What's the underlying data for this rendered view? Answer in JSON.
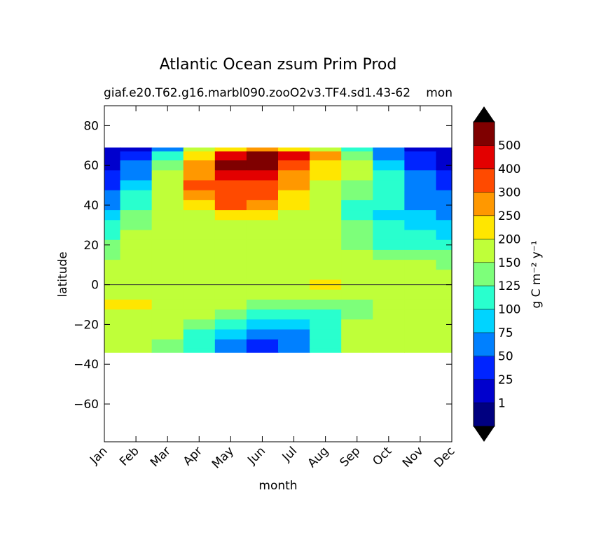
{
  "chart_data": {
    "type": "contourf",
    "title": "Atlantic Ocean zsum Prim Prod",
    "subtitle_left": "giaf.e20.T62.g16.marbl090.zooO2v3.TF4.sd1.43-62",
    "subtitle_right": "mon",
    "xlabel": "month",
    "ylabel": "latitude",
    "colorbar_label": "g C m⁻² y⁻¹",
    "categories": [
      "Jan",
      "Feb",
      "Mar",
      "Apr",
      "May",
      "Jun",
      "Jul",
      "Aug",
      "Sep",
      "Oct",
      "Nov",
      "Dec"
    ],
    "xlim": [
      0,
      11
    ],
    "ylim": [
      -79,
      90
    ],
    "yticks": [
      {
        "value": -60,
        "label": "−60"
      },
      {
        "value": -40,
        "label": "−40"
      },
      {
        "value": -20,
        "label": "−20"
      },
      0,
      20,
      40,
      60,
      80
    ],
    "lat": [
      69,
      65,
      60,
      55,
      50,
      45,
      40,
      35,
      30,
      25,
      20,
      15,
      10,
      5,
      0,
      -5,
      -10,
      -15,
      -20,
      -25,
      -30,
      -34
    ],
    "z": [
      [
        10,
        20,
        60,
        150,
        200,
        250,
        200,
        180,
        120,
        60,
        20,
        10
      ],
      [
        10,
        30,
        110,
        210,
        450,
        550,
        420,
        250,
        140,
        70,
        30,
        20
      ],
      [
        10,
        50,
        140,
        260,
        520,
        530,
        350,
        220,
        150,
        80,
        40,
        20
      ],
      [
        30,
        70,
        160,
        280,
        420,
        420,
        280,
        200,
        150,
        100,
        50,
        30
      ],
      [
        40,
        90,
        170,
        300,
        350,
        340,
        260,
        180,
        140,
        110,
        60,
        40
      ],
      [
        60,
        110,
        180,
        260,
        330,
        320,
        220,
        170,
        130,
        110,
        70,
        50
      ],
      [
        60,
        120,
        170,
        220,
        310,
        260,
        210,
        160,
        120,
        100,
        70,
        60
      ],
      [
        80,
        130,
        170,
        170,
        220,
        210,
        190,
        165,
        110,
        90,
        80,
        70
      ],
      [
        100,
        140,
        170,
        170,
        180,
        180,
        170,
        160,
        130,
        100,
        90,
        80
      ],
      [
        110,
        160,
        170,
        170,
        170,
        170,
        170,
        165,
        140,
        110,
        100,
        90
      ],
      [
        130,
        160,
        170,
        170,
        170,
        170,
        170,
        170,
        145,
        120,
        110,
        110
      ],
      [
        140,
        170,
        170,
        170,
        170,
        170,
        170,
        170,
        160,
        135,
        130,
        130
      ],
      [
        170,
        170,
        170,
        170,
        170,
        170,
        170,
        170,
        170,
        160,
        150,
        145
      ],
      [
        170,
        170,
        170,
        170,
        170,
        170,
        170,
        170,
        170,
        170,
        170,
        160
      ],
      [
        170,
        170,
        170,
        170,
        170,
        170,
        170,
        210,
        170,
        170,
        170,
        170
      ],
      [
        170,
        170,
        170,
        170,
        170,
        170,
        170,
        170,
        170,
        170,
        170,
        170
      ],
      [
        210,
        210,
        170,
        170,
        150,
        140,
        140,
        140,
        145,
        170,
        170,
        170
      ],
      [
        170,
        170,
        170,
        160,
        130,
        120,
        110,
        120,
        140,
        165,
        170,
        170
      ],
      [
        170,
        170,
        170,
        140,
        110,
        90,
        80,
        110,
        150,
        160,
        170,
        170
      ],
      [
        170,
        170,
        160,
        110,
        80,
        60,
        70,
        110,
        150,
        165,
        170,
        170
      ],
      [
        170,
        170,
        140,
        110,
        60,
        40,
        60,
        110,
        150,
        165,
        170,
        170
      ],
      [
        170,
        160,
        130,
        100,
        60,
        40,
        60,
        120,
        160,
        170,
        170,
        170
      ]
    ],
    "levels": [
      1,
      25,
      50,
      75,
      100,
      125,
      150,
      200,
      250,
      300,
      400,
      500
    ],
    "colors": [
      "#000080",
      "#0000cd",
      "#0024ff",
      "#0080ff",
      "#00d4ff",
      "#29ffce",
      "#7dff7a",
      "#bfff39",
      "#ffe600",
      "#ff9800",
      "#ff4a00",
      "#e30000",
      "#7f0000"
    ]
  }
}
